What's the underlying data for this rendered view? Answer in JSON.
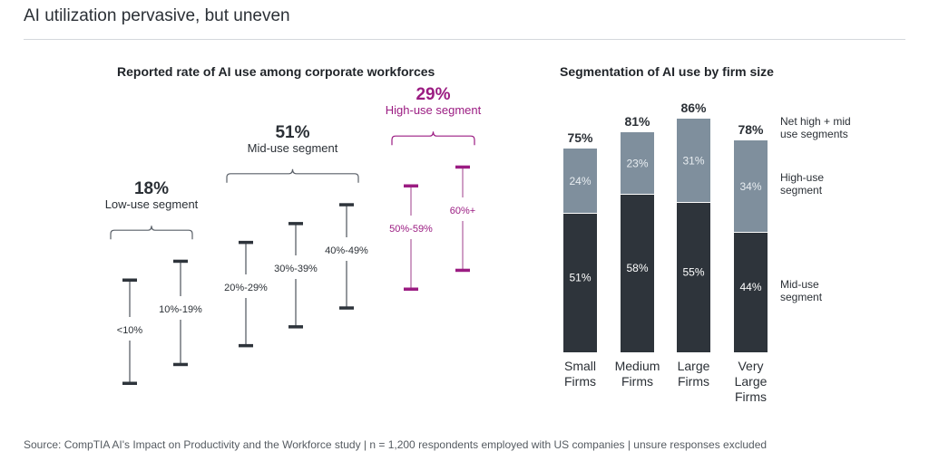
{
  "page": {
    "title": "AI utilization pervasive, but uneven",
    "source": "Source: CompTIA AI's Impact on Productivity and the Workforce study | n = 1,200 respondents employed with US companies | unsure responses excluded"
  },
  "colors": {
    "dark": "#2e343b",
    "light": "#7f8f9d",
    "magenta": "#9b1c82",
    "text": "#2b3036"
  },
  "chart_data": [
    {
      "type": "range",
      "title": "Reported rate of AI use among corporate workforces",
      "segments": [
        {
          "name": "Low-use segment",
          "value": "18%",
          "color_key": "dark",
          "ranges": [
            {
              "label": "<10%",
              "order": 0
            },
            {
              "label": "10%-19%",
              "order": 1
            }
          ]
        },
        {
          "name": "Mid-use segment",
          "value": "51%",
          "color_key": "dark",
          "ranges": [
            {
              "label": "20%-29%",
              "order": 2
            },
            {
              "label": "30%-39%",
              "order": 3
            },
            {
              "label": "40%-49%",
              "order": 4
            }
          ]
        },
        {
          "name": "High-use segment",
          "value": "29%",
          "color_key": "magenta",
          "ranges": [
            {
              "label": "50%-59%",
              "order": 5
            },
            {
              "label": "60%+",
              "order": 6
            }
          ]
        }
      ]
    },
    {
      "type": "bar",
      "stacked": true,
      "title": "Segmentation of AI use by firm size",
      "categories": [
        "Small Firms",
        "Medium Firms",
        "Large Firms",
        "Very Large Firms"
      ],
      "category_lines": [
        [
          "Small",
          "Firms"
        ],
        [
          "Medium",
          "Firms"
        ],
        [
          "Large",
          "Firms"
        ],
        [
          "Very",
          "Large",
          "Firms"
        ]
      ],
      "series": [
        {
          "name": "Mid-use segment",
          "values": [
            51,
            58,
            55,
            44
          ]
        },
        {
          "name": "High-use segment",
          "values": [
            24,
            23,
            31,
            34
          ]
        }
      ],
      "totals": [
        75,
        81,
        86,
        78
      ],
      "total_label": "Net high + mid use segments",
      "legend": [
        {
          "label_lines": [
            "Net high + mid",
            "use segments"
          ]
        },
        {
          "label_lines": [
            "High-use",
            "segment"
          ]
        },
        {
          "label_lines": [
            "Mid-use",
            "segment"
          ]
        }
      ],
      "legend_position": "right",
      "unit": "%",
      "grid": false
    }
  ]
}
